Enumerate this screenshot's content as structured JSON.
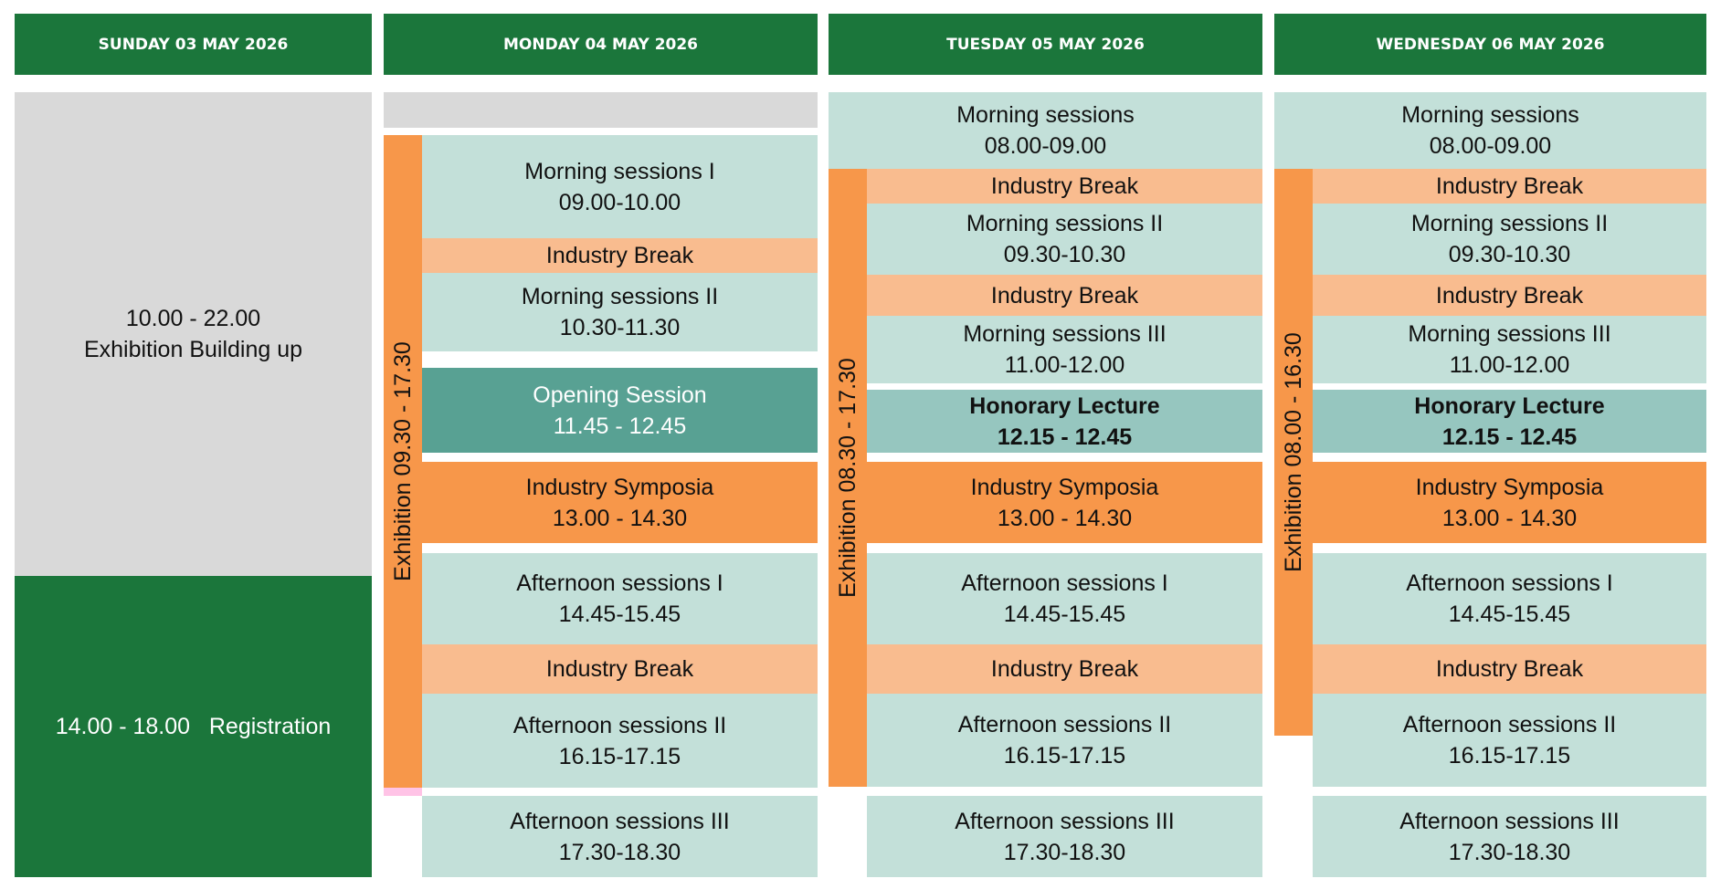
{
  "headers": {
    "sun": "SUNDAY 03 MAY 2026",
    "mon": "MONDAY 04 MAY 2026",
    "tue": "TUESDAY 05 MAY 2026",
    "wed": "WEDNESDAY 06 MAY 2026"
  },
  "sunday": {
    "buildup_time": "10.00 - 22.00",
    "buildup_label": "Exhibition Building up",
    "registration": "14.00 - 18.00   Registration"
  },
  "monday": {
    "exhibition": "Exhibition 09.30 - 17.30",
    "ms1_title": "Morning sessions I",
    "ms1_time": "09.00-10.00",
    "break1": "Industry Break",
    "ms2_title": "Morning sessions II",
    "ms2_time": "10.30-11.30",
    "opening_title": "Opening Session",
    "opening_time": "11.45 - 12.45",
    "symp_title": "Industry Symposia",
    "symp_time": "13.00 - 14.30",
    "as1_title": "Afternoon sessions I",
    "as1_time": "14.45-15.45",
    "break2": "Industry Break",
    "as2_title": "Afternoon sessions II",
    "as2_time": "16.15-17.15",
    "as3_title": "Afternoon sessions III",
    "as3_time": "17.30-18.30"
  },
  "tuesday": {
    "exhibition": "Exhibition 08.30 - 17.30",
    "ms0_title": "Morning sessions",
    "ms0_time": "08.00-09.00",
    "break1": "Industry Break",
    "ms2_title": "Morning sessions II",
    "ms2_time": "09.30-10.30",
    "break2": "Industry Break",
    "ms3_title": "Morning sessions III",
    "ms3_time": "11.00-12.00",
    "honor_title": "Honorary Lecture",
    "honor_time": "12.15 - 12.45",
    "symp_title": "Industry Symposia",
    "symp_time": "13.00 - 14.30",
    "as1_title": "Afternoon sessions I",
    "as1_time": "14.45-15.45",
    "break3": "Industry Break",
    "as2_title": "Afternoon sessions II",
    "as2_time": "16.15-17.15",
    "as3_title": "Afternoon sessions III",
    "as3_time": "17.30-18.30"
  },
  "wednesday": {
    "exhibition": "Exhibition 08.00 - 16.30",
    "ms0_title": "Morning sessions",
    "ms0_time": "08.00-09.00",
    "break1": "Industry Break",
    "ms2_title": "Morning sessions II",
    "ms2_time": "09.30-10.30",
    "break2": "Industry Break",
    "ms3_title": "Morning sessions III",
    "ms3_time": "11.00-12.00",
    "honor_title": "Honorary Lecture",
    "honor_time": "12.15 - 12.45",
    "symp_title": "Industry Symposia",
    "symp_time": "13.00 - 14.30",
    "as1_title": "Afternoon sessions I",
    "as1_time": "14.45-15.45",
    "break3": "Industry Break",
    "as2_title": "Afternoon sessions II",
    "as2_time": "16.15-17.15",
    "as3_title": "Afternoon sessions III",
    "as3_time": "17.30-18.30"
  },
  "colors": {
    "header_green": "#1b763b",
    "session": "#c3e0d9",
    "industry_break": "#f9bc8f",
    "symposia_exhibition": "#f7974a",
    "honorary": "#96c6bf",
    "opening": "#58a193",
    "building_up": "#d9d9d9"
  }
}
